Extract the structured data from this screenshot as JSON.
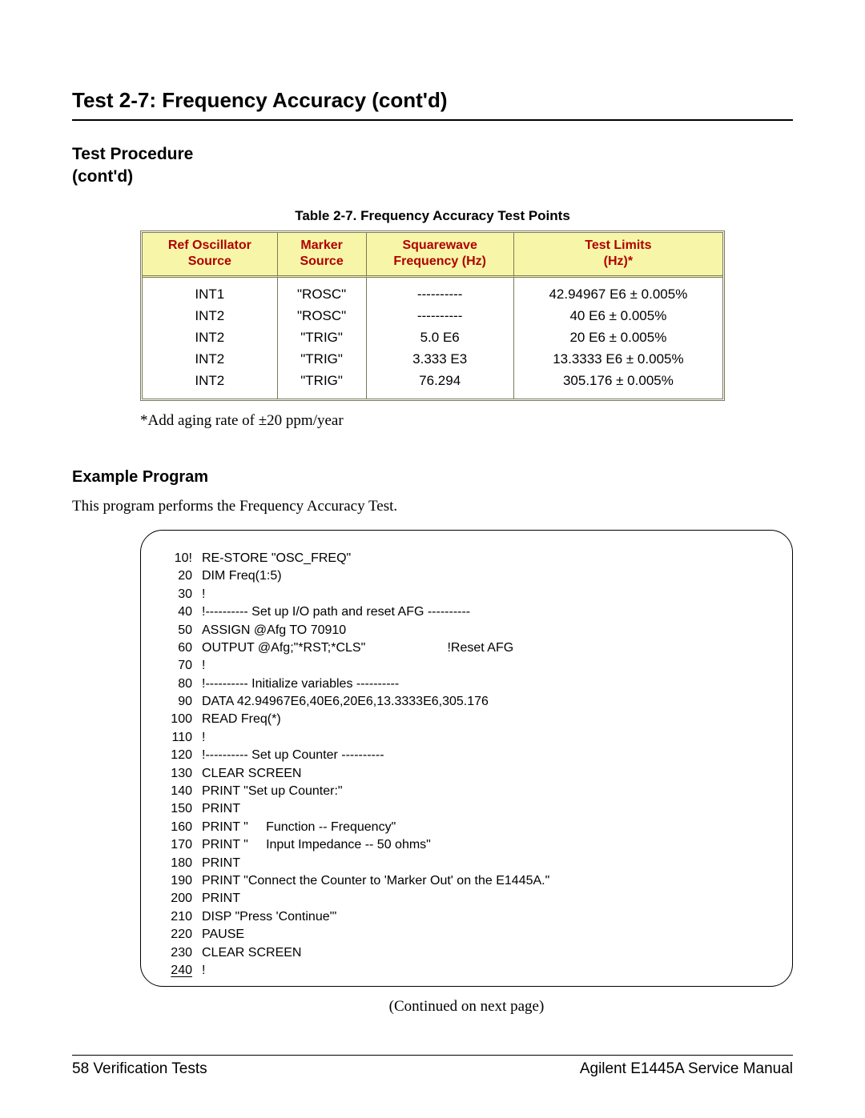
{
  "title": "Test 2-7:  Frequency Accuracy (cont'd)",
  "section_heading_line1": "Test Procedure",
  "section_heading_line2": "(cont'd)",
  "table": {
    "caption": "Table 2-7.  Frequency Accuracy Test Points",
    "header_bg": "#f7f6a8",
    "header_color": "#b00000",
    "columns": [
      {
        "line1": "Ref Oscillator",
        "line2": "Source"
      },
      {
        "line1": "Marker",
        "line2": "Source"
      },
      {
        "line1": "Squarewave",
        "line2": "Frequency (Hz)"
      },
      {
        "line1": "Test Limits",
        "line2": "(Hz)*"
      }
    ],
    "rows": [
      [
        "INT1",
        "\"ROSC\"",
        "----------",
        "42.94967 E6 ± 0.005%"
      ],
      [
        "INT2",
        "\"ROSC\"",
        "----------",
        "40 E6 ± 0.005%"
      ],
      [
        "INT2",
        "\"TRIG\"",
        "5.0 E6",
        "20 E6 ± 0.005%"
      ],
      [
        "INT2",
        "\"TRIG\"",
        "3.333 E3",
        "13.3333 E6 ± 0.005%"
      ],
      [
        "INT2",
        "\"TRIG\"",
        "76.294",
        "305.176 ± 0.005%"
      ]
    ]
  },
  "footnote": "*Add aging rate of  ±20 ppm/year",
  "example_heading": "Example Program",
  "example_intro": "This program performs the Frequency Accuracy Test.",
  "code": [
    {
      "n": "10!",
      "t": "RE-STORE \"OSC_FREQ\"",
      "c": ""
    },
    {
      "n": "20",
      "t": "DIM Freq(1:5)",
      "c": ""
    },
    {
      "n": "30",
      "t": "!",
      "c": ""
    },
    {
      "n": "40",
      "t": "!---------- Set up I/O path and reset AFG ----------",
      "c": ""
    },
    {
      "n": "50",
      "t": "ASSIGN @Afg TO 70910",
      "c": ""
    },
    {
      "n": "60",
      "t": "OUTPUT @Afg;\"*RST;*CLS\"",
      "c": "!Reset AFG"
    },
    {
      "n": "70",
      "t": "!",
      "c": ""
    },
    {
      "n": "80",
      "t": "!---------- Initialize variables ----------",
      "c": ""
    },
    {
      "n": "90",
      "t": "DATA 42.94967E6,40E6,20E6,13.3333E6,305.176",
      "c": ""
    },
    {
      "n": "100",
      "t": "READ Freq(*)",
      "c": ""
    },
    {
      "n": "110",
      "t": "!",
      "c": ""
    },
    {
      "n": "120",
      "t": "!---------- Set up Counter ----------",
      "c": ""
    },
    {
      "n": "130",
      "t": "CLEAR SCREEN",
      "c": ""
    },
    {
      "n": "140",
      "t": "PRINT \"Set up Counter:\"",
      "c": ""
    },
    {
      "n": "150",
      "t": "PRINT",
      "c": ""
    },
    {
      "n": "160",
      "t": "PRINT \"     Function -- Frequency\"",
      "c": ""
    },
    {
      "n": "170",
      "t": "PRINT \"     Input Impedance -- 50 ohms\"",
      "c": ""
    },
    {
      "n": "180",
      "t": "PRINT",
      "c": ""
    },
    {
      "n": "190",
      "t": "PRINT \"Connect the Counter to 'Marker Out' on the E1445A.\"",
      "c": ""
    },
    {
      "n": "200",
      "t": "PRINT",
      "c": ""
    },
    {
      "n": "210",
      "t": "DISP \"Press 'Continue'\"",
      "c": ""
    },
    {
      "n": "220",
      "t": "PAUSE",
      "c": ""
    },
    {
      "n": "230",
      "t": "CLEAR SCREEN",
      "c": ""
    },
    {
      "n": "240",
      "t": "!",
      "c": ""
    }
  ],
  "continued": "(Continued on next page)",
  "footer": {
    "left_page": "58",
    "left_text": "  Verification Tests",
    "right": "Agilent E1445A Service Manual"
  }
}
